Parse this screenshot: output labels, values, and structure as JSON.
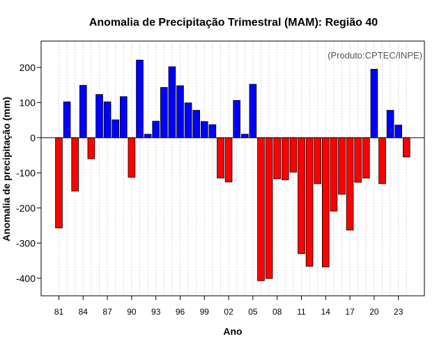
{
  "chart_data": {
    "type": "bar",
    "title": "Anomalia de Precipitação Trimestral (MAM): Região 40",
    "xlabel": "Ano",
    "ylabel": "Anomalia de precipitação (mm)",
    "credit": "(Produto:CPTEC/INPE)",
    "ylim": [
      -450,
      275
    ],
    "yticks": [
      -400,
      -300,
      -200,
      -100,
      0,
      100,
      200
    ],
    "ytick_labels": [
      "-400",
      "-300",
      "-200",
      "-100",
      "0",
      "100",
      "200"
    ],
    "xtick_labels": [
      "81",
      "84",
      "87",
      "90",
      "93",
      "96",
      "99",
      "02",
      "05",
      "08",
      "11",
      "14",
      "17",
      "20",
      "23"
    ],
    "xtick_years": [
      1981,
      1984,
      1987,
      1990,
      1993,
      1996,
      1999,
      2002,
      2005,
      2008,
      2011,
      2014,
      2017,
      2020,
      2023
    ],
    "grid": true,
    "colors": {
      "positive": "#0000ff",
      "negative": "#ff0000",
      "grid": "#d3d3d3",
      "credit": "#555555"
    },
    "years": [
      1981,
      1982,
      1983,
      1984,
      1985,
      1986,
      1987,
      1988,
      1989,
      1990,
      1991,
      1992,
      1993,
      1994,
      1995,
      1996,
      1997,
      1998,
      1999,
      2000,
      2001,
      2002,
      2003,
      2004,
      2005,
      2006,
      2007,
      2008,
      2009,
      2010,
      2011,
      2012,
      2013,
      2014,
      2015,
      2016,
      2017,
      2018,
      2019,
      2020,
      2021,
      2022,
      2023,
      2024
    ],
    "values": [
      -257,
      102,
      -152,
      149,
      -60,
      123,
      102,
      51,
      117,
      -113,
      221,
      10,
      47,
      143,
      202,
      148,
      99,
      78,
      46,
      37,
      -115,
      -126,
      106,
      10,
      152,
      -407,
      -401,
      -117,
      -120,
      -98,
      -330,
      -366,
      -131,
      -368,
      -209,
      -161,
      -263,
      -127,
      -115,
      195,
      -131,
      78,
      36,
      -55
    ]
  }
}
